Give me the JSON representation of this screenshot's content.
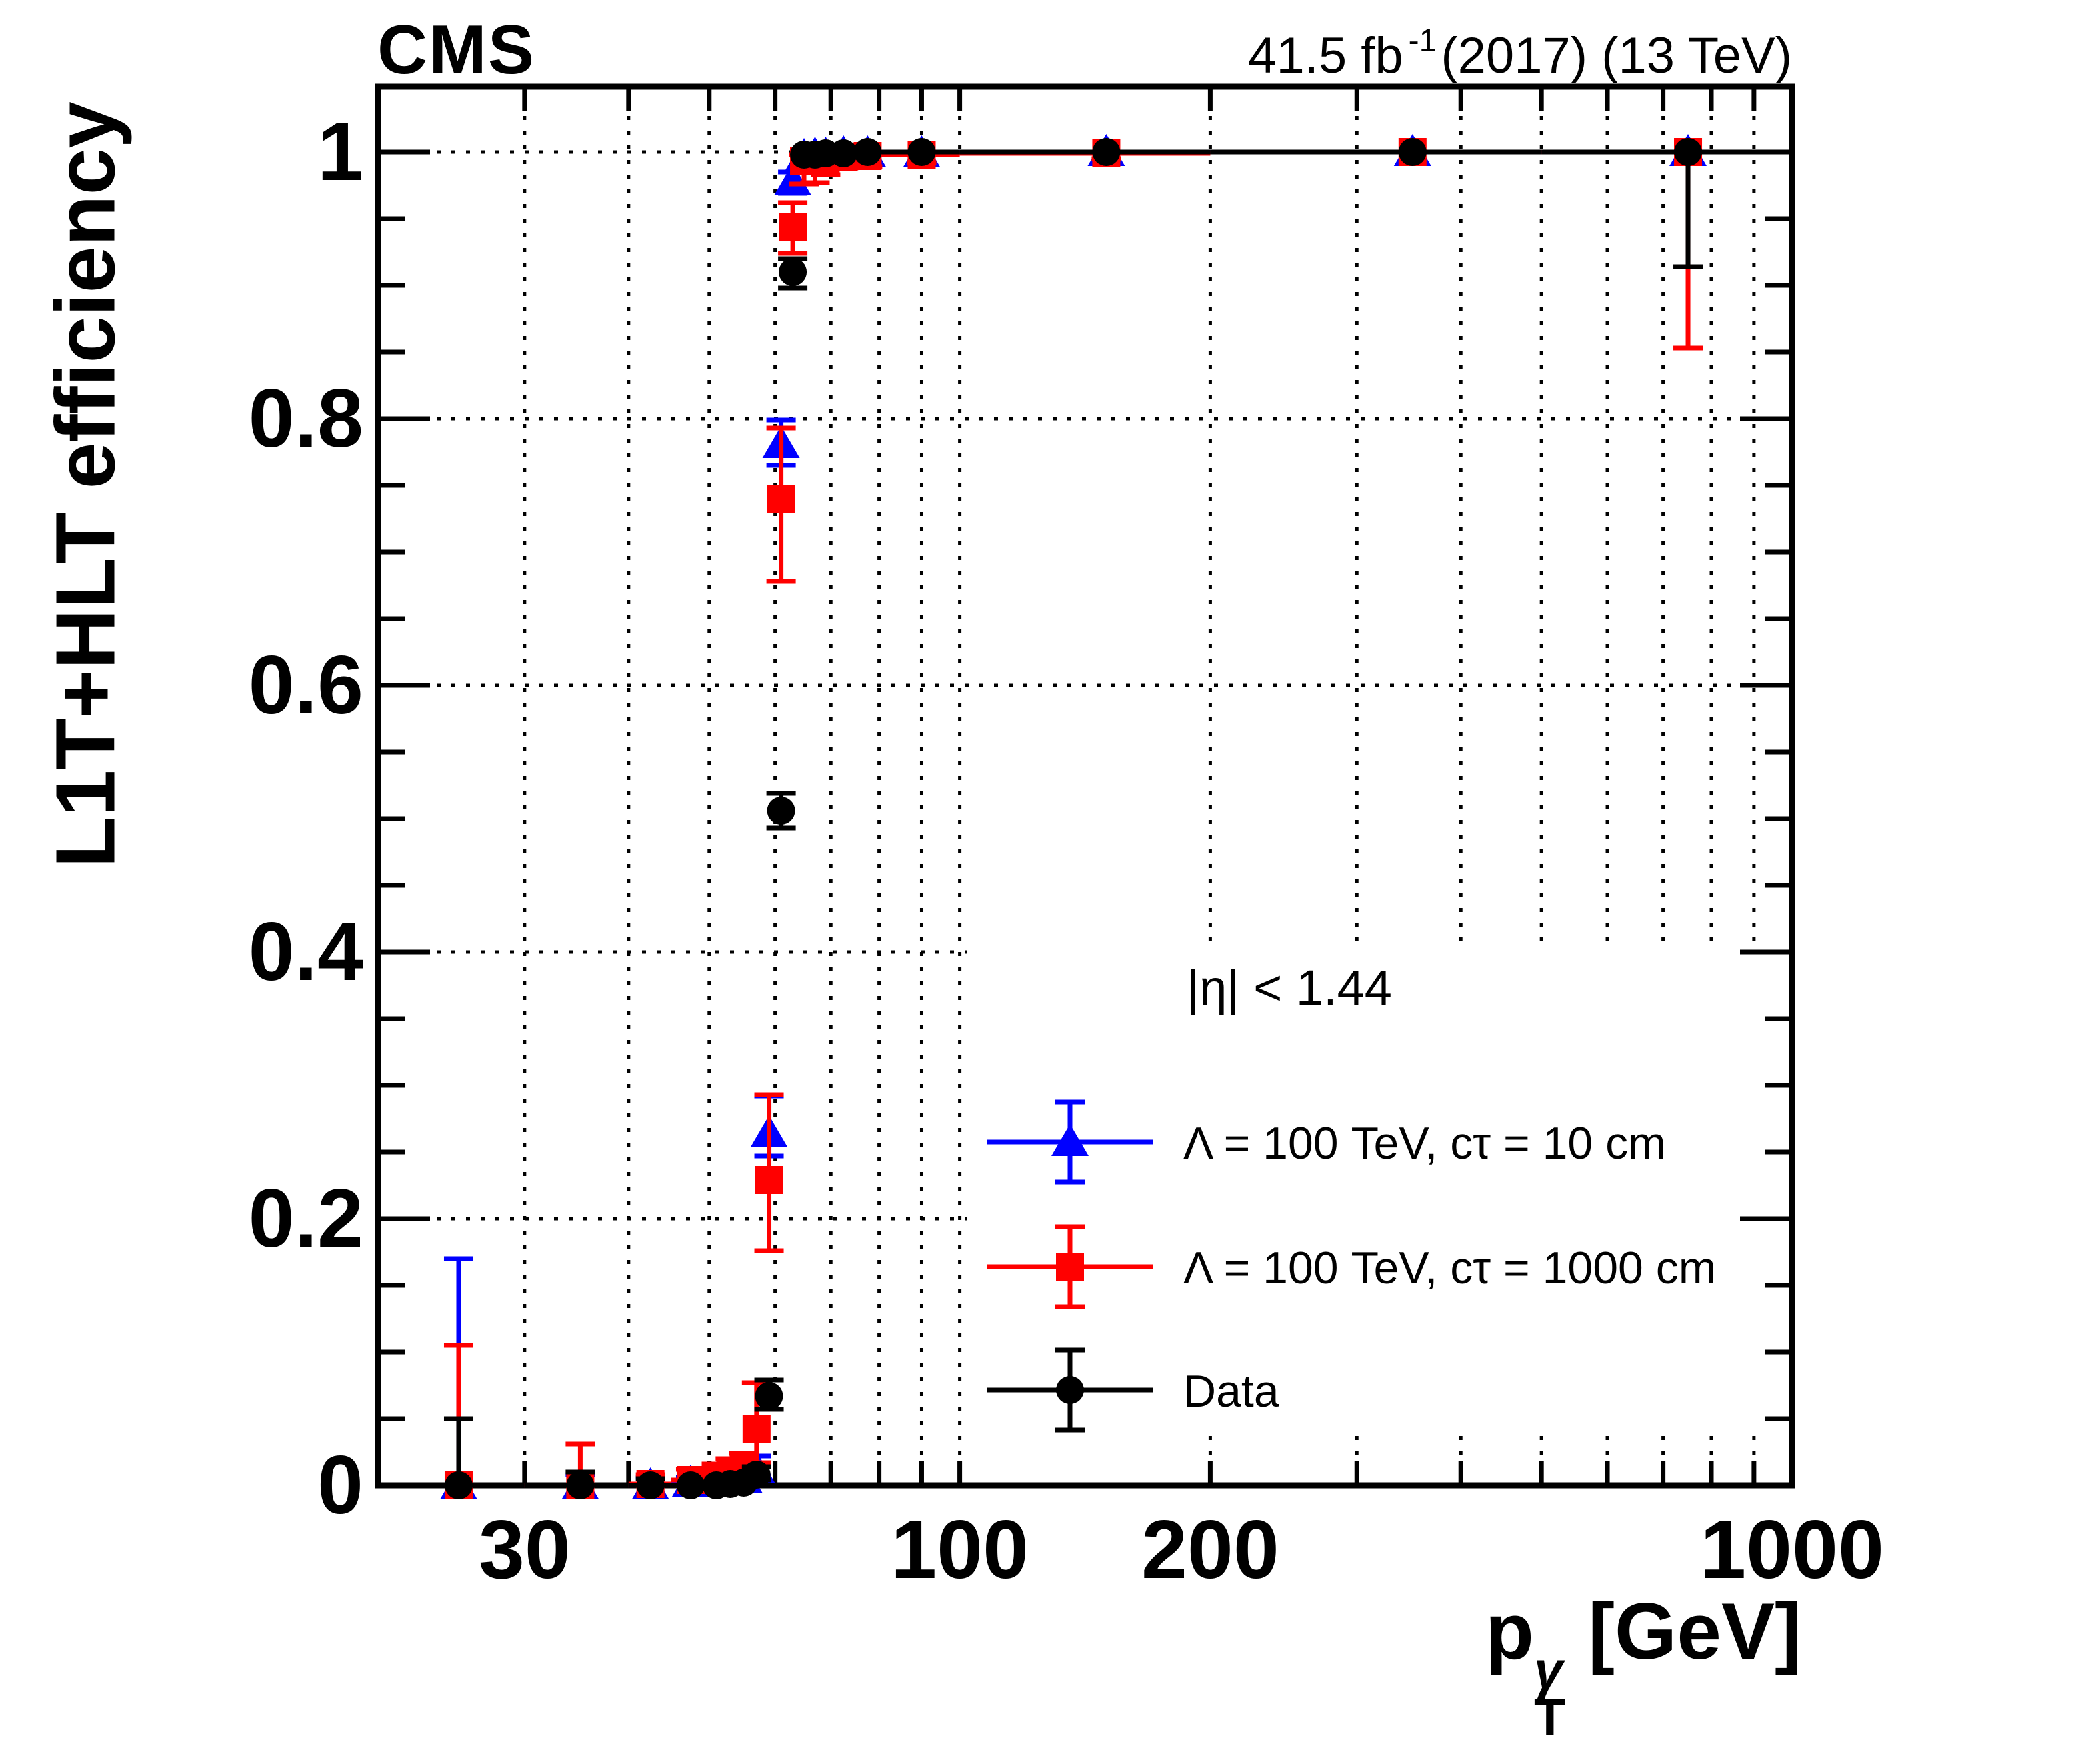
{
  "header": {
    "cms_label": "CMS",
    "lumi_prefix": "41.5 fb",
    "lumi_sup": "-1",
    "lumi_rest": "(2017) (13 TeV)"
  },
  "axes": {
    "y_title": "L1T+HLT efficiency",
    "x_title_base": "p",
    "x_title_sup": "γ",
    "x_title_sub": "T",
    "x_title_rest": " [GeV]"
  },
  "legend": {
    "header": "|η| < 1.44",
    "entries": [
      {
        "label": "Λ = 100 TeV, cτ = 10 cm",
        "color": "#0000ff",
        "marker": "triangle"
      },
      {
        "label": "Λ = 100 TeV, cτ = 1000 cm",
        "color": "#ff0000",
        "marker": "square"
      },
      {
        "label": "Data",
        "color": "#000000",
        "marker": "circle"
      }
    ]
  },
  "chart_data": {
    "type": "scatter",
    "title": "CMS L1T+HLT photon trigger efficiency vs photon pT",
    "xlabel": "pT^γ [GeV]",
    "ylabel": "L1T+HLT efficiency",
    "x_scale": "log",
    "xlim": [
      20,
      1000
    ],
    "ylim": [
      0,
      1.049
    ],
    "grid": true,
    "x_gridlines": [
      30,
      40,
      50,
      60,
      70,
      80,
      90,
      100,
      200,
      300,
      400,
      500,
      600,
      700,
      800,
      900
    ],
    "y_gridlines": [
      0.2,
      0.4,
      0.6,
      0.8,
      1.0
    ],
    "x_ticks": [
      30,
      40,
      50,
      60,
      70,
      80,
      90,
      100,
      200,
      300,
      400,
      500,
      600,
      700,
      800,
      900,
      1000
    ],
    "x_tick_labels": [
      {
        "value": 30,
        "label": "30"
      },
      {
        "value": 100,
        "label": "100"
      },
      {
        "value": 200,
        "label": "200"
      },
      {
        "value": 1000,
        "label": "1000"
      }
    ],
    "y_major_ticks": [
      0,
      0.2,
      0.4,
      0.6,
      0.8,
      1.0
    ],
    "y_tick_labels": [
      "0",
      "0.2",
      "0.4",
      "0.6",
      "0.8",
      "1"
    ],
    "y_minor_tick_step": 0.05,
    "bin_edges": [
      20,
      30,
      40,
      45,
      50,
      52,
      54,
      56,
      58,
      60,
      62,
      64,
      66,
      68,
      70,
      75,
      80,
      100,
      200,
      500,
      1000
    ],
    "x": [
      25,
      35,
      42.5,
      47.5,
      51,
      53,
      55,
      57,
      59,
      61,
      63,
      65,
      67,
      69,
      72.5,
      77.5,
      90,
      150,
      350,
      750
    ],
    "legend_position": "lower right",
    "series": [
      {
        "name": "Λ = 100 TeV, cτ = 10 cm",
        "marker": "triangle",
        "color": "#0000ff",
        "y": [
          0,
          0,
          0,
          0.002,
          0.003,
          0.004,
          0.005,
          0.012,
          0.264,
          0.781,
          0.978,
          0.997,
          0.998,
          0.998,
          0.999,
          0.999,
          0.999,
          1.0,
          1.0,
          1.0
        ],
        "err_low": [
          0,
          0,
          0,
          0.001,
          0.001,
          0.002,
          0.002,
          0.005,
          0.017,
          0.016,
          0.009,
          0.003,
          0.003,
          0.002,
          0.002,
          0.002,
          0.002,
          0.001,
          0.001,
          0.001
        ],
        "err_high": [
          0.17,
          0.008,
          0.006,
          0.004,
          0.004,
          0.005,
          0.006,
          0.01,
          0.028,
          0.018,
          0.007,
          0.002,
          0.002,
          0.001,
          0.001,
          0.001,
          0.001,
          0.0,
          0.0,
          0.0
        ]
      },
      {
        "name": "Λ = 100 TeV, cτ = 1000 cm",
        "marker": "square",
        "color": "#ff0000",
        "y": [
          0,
          0,
          0.001,
          0.004,
          0.006,
          0.008,
          0.012,
          0.042,
          0.229,
          0.74,
          0.944,
          0.993,
          0.994,
          0.995,
          0.996,
          0.997,
          0.998,
          0.999,
          1.0,
          1.0
        ],
        "err_low": [
          0,
          0,
          0.001,
          0.002,
          0.003,
          0.004,
          0.005,
          0.025,
          0.053,
          0.062,
          0.02,
          0.017,
          0.017,
          0.012,
          0.008,
          0.008,
          0.006,
          0.004,
          0.002,
          0.147
        ],
        "err_high": [
          0.105,
          0.031,
          0.007,
          0.008,
          0.01,
          0.012,
          0.012,
          0.035,
          0.064,
          0.053,
          0.018,
          0.005,
          0.005,
          0.004,
          0.003,
          0.002,
          0.002,
          0.001,
          0.0,
          0.0
        ]
      },
      {
        "name": "Data",
        "marker": "circle",
        "color": "#000000",
        "y": [
          0,
          0,
          0,
          0,
          0,
          0.001,
          0.002,
          0.008,
          0.067,
          0.506,
          0.91,
          0.998,
          0.998,
          0.999,
          0.999,
          1.0,
          1.0,
          1.0,
          1.0,
          1.0
        ],
        "err_low": [
          0,
          0,
          0,
          0,
          0,
          0.001,
          0.001,
          0.004,
          0.01,
          0.013,
          0.012,
          0.002,
          0.002,
          0.001,
          0.001,
          0.001,
          0.001,
          0.001,
          0.002,
          0.086
        ],
        "err_high": [
          0.05,
          0.01,
          0.005,
          0.003,
          0.002,
          0.002,
          0.003,
          0.006,
          0.012,
          0.013,
          0.01,
          0.001,
          0.001,
          0.001,
          0.001,
          0.0,
          0.0,
          0.0,
          0.0,
          0.0
        ]
      }
    ]
  }
}
